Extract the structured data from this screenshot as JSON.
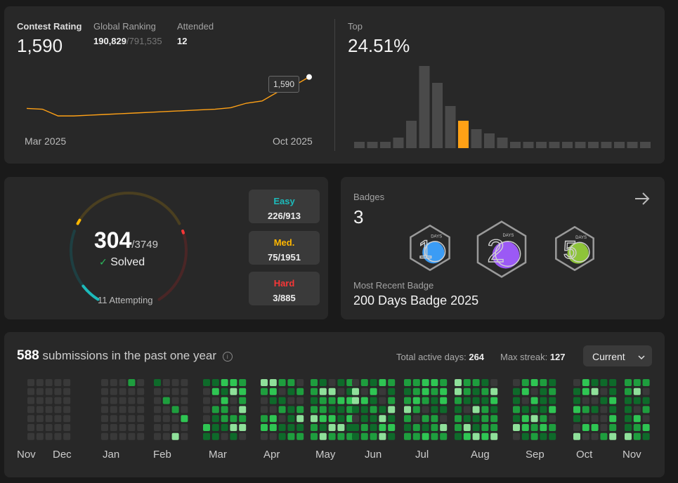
{
  "contest": {
    "rating_label": "Contest Rating",
    "rating_value": "1,590",
    "ranking_label": "Global Ranking",
    "ranking_value": "190,829",
    "ranking_total": "/791,535",
    "attended_label": "Attended",
    "attended_value": "12",
    "tooltip_value": "1,590",
    "x_start": "Mar 2025",
    "x_end": "Oct 2025",
    "rating_series": [
      1548,
      1547,
      1538,
      1538,
      1539,
      1540,
      1541,
      1542,
      1543,
      1544,
      1545,
      1546,
      1547,
      1549,
      1555,
      1558,
      1570,
      1578,
      1590
    ]
  },
  "top": {
    "label": "Top",
    "value": "24.51%",
    "histogram": [
      3,
      3,
      3,
      5,
      13,
      39,
      31,
      20,
      13,
      9,
      7,
      5,
      3,
      3,
      3,
      3,
      3,
      3,
      3,
      3,
      3,
      3,
      3
    ],
    "highlight_index": 8,
    "accent": "#ffa116"
  },
  "solved": {
    "count": "304",
    "total": "/3749",
    "label": "Solved",
    "attempting": "11 Attempting",
    "easy_label": "Easy",
    "easy_value": "226/913",
    "med_label": "Med.",
    "med_value": "75/1951",
    "hard_label": "Hard",
    "hard_value": "3/885",
    "easy_color": "#1cbaba",
    "med_color": "#ffb700",
    "hard_color": "#f63737"
  },
  "badges": {
    "label": "Badges",
    "count": "3",
    "recent_label": "Most Recent Badge",
    "recent_value": "200 Days Badge 2025",
    "items": [
      {
        "name": "100 Days Badge",
        "digit": "1",
        "days": "DAYS",
        "color": "#3b9cf5"
      },
      {
        "name": "200 Days Badge 2025",
        "digit": "2",
        "days": "DAYS",
        "color": "#9b59f5"
      },
      {
        "name": "50 Days Badge",
        "digit": "5",
        "days": "DAYS",
        "color": "#8ec43a"
      }
    ]
  },
  "heatmap": {
    "count": "588",
    "label": "submissions in the past one year",
    "active_label": "Total active days:",
    "active_value": "264",
    "streak_label": "Max streak:",
    "streak_value": "127",
    "selector": "Current",
    "months": [
      "Nov",
      "Dec",
      "Jan",
      "Feb",
      "Mar",
      "Apr",
      "May",
      "Jun",
      "Jul",
      "Aug",
      "Sep",
      "Oct",
      "Nov"
    ],
    "colors": [
      "#393939",
      "#0e6a2a",
      "#1e9e3e",
      "#2fc553",
      "#8fe09a"
    ]
  }
}
